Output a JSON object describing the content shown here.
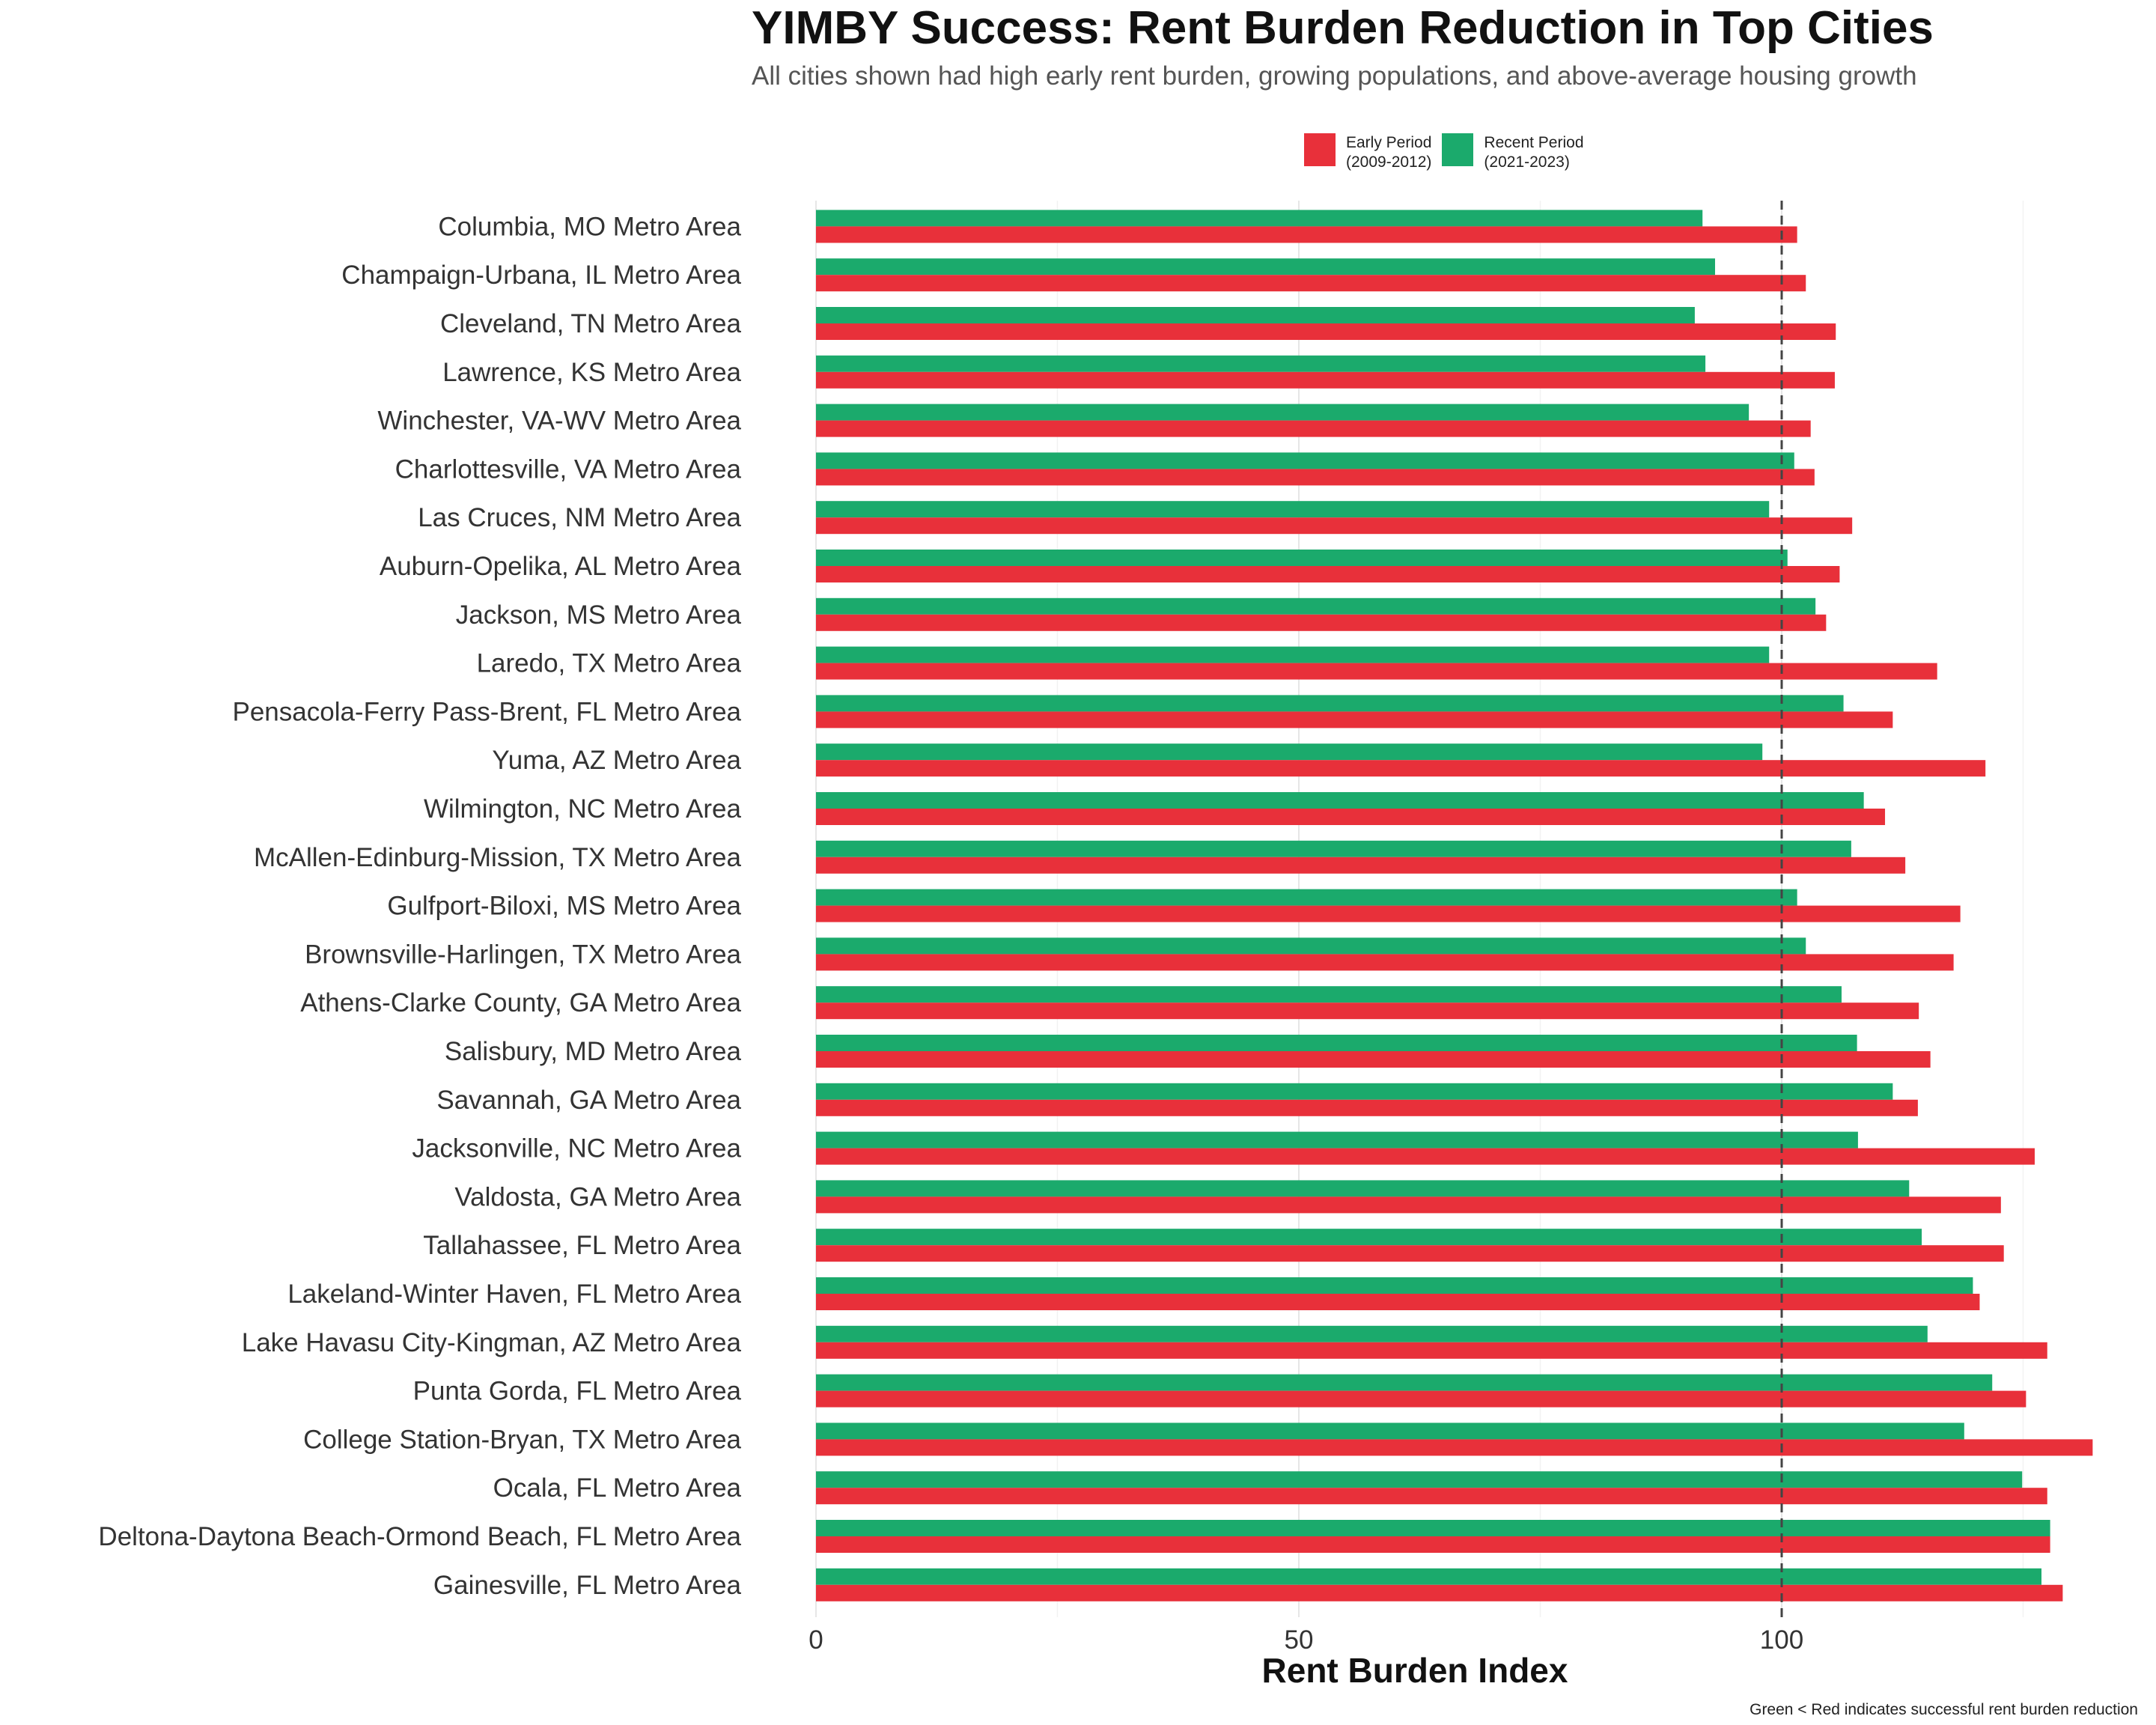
{
  "title": "YIMBY Success: Rent Burden Reduction in Top Cities",
  "subtitle": "All cities shown had high early rent burden, growing populations, and above-average housing growth",
  "caption": "Green < Red indicates successful rent burden reduction",
  "colors": {
    "early": "#E8303A",
    "recent": "#1BAA6C",
    "reference": "#444444",
    "grid": "#E6E6E6"
  },
  "legend": [
    {
      "name": "Early Period\n(2009-2012)",
      "color": "#E8303A"
    },
    {
      "name": "Recent Period\n(2021-2023)",
      "color": "#1BAA6C"
    }
  ],
  "chart_data": {
    "type": "bar",
    "orientation": "horizontal",
    "xlabel": "Rent Burden Index",
    "ylabel": "",
    "xlim": [
      0,
      132.5
    ],
    "xticks": [
      0,
      50,
      100
    ],
    "reference_line": 100,
    "grid": true,
    "legend_position": "top",
    "categories": [
      "Columbia, MO Metro Area",
      "Champaign-Urbana, IL Metro Area",
      "Cleveland, TN Metro Area",
      "Lawrence, KS Metro Area",
      "Winchester, VA-WV Metro Area",
      "Charlottesville, VA Metro Area",
      "Las Cruces, NM Metro Area",
      "Auburn-Opelika, AL Metro Area",
      "Jackson, MS Metro Area",
      "Laredo, TX Metro Area",
      "Pensacola-Ferry Pass-Brent, FL Metro Area",
      "Yuma, AZ Metro Area",
      "Wilmington, NC Metro Area",
      "McAllen-Edinburg-Mission, TX Metro Area",
      "Gulfport-Biloxi, MS Metro Area",
      "Brownsville-Harlingen, TX Metro Area",
      "Athens-Clarke County, GA Metro Area",
      "Salisbury, MD Metro Area",
      "Savannah, GA Metro Area",
      "Jacksonville, NC Metro Area",
      "Valdosta, GA Metro Area",
      "Tallahassee, FL Metro Area",
      "Lakeland-Winter Haven, FL Metro Area",
      "Lake Havasu City-Kingman, AZ Metro Area",
      "Punta Gorda, FL Metro Area",
      "College Station-Bryan, TX Metro Area",
      "Ocala, FL Metro Area",
      "Deltona-Daytona Beach-Ormond Beach, FL Metro Area",
      "Gainesville, FL Metro Area"
    ],
    "series": [
      {
        "name": "Recent Period\n(2021-2023)",
        "key": "recent",
        "values": [
          91.8,
          93.1,
          91.0,
          92.1,
          96.6,
          101.3,
          98.7,
          100.6,
          103.5,
          98.7,
          106.4,
          98.0,
          108.5,
          107.2,
          101.6,
          102.5,
          106.2,
          107.8,
          111.5,
          107.9,
          113.2,
          114.5,
          119.8,
          115.1,
          121.8,
          118.9,
          124.9,
          127.8,
          126.9
        ]
      },
      {
        "name": "Early Period\n(2009-2012)",
        "key": "early",
        "values": [
          101.6,
          102.5,
          105.6,
          105.5,
          103.0,
          103.4,
          107.3,
          106.0,
          104.6,
          116.1,
          111.5,
          121.1,
          110.7,
          112.8,
          118.5,
          117.8,
          114.2,
          115.4,
          114.1,
          126.2,
          122.7,
          123.0,
          120.5,
          127.5,
          125.3,
          132.2,
          127.5,
          127.8,
          129.1
        ]
      }
    ]
  }
}
